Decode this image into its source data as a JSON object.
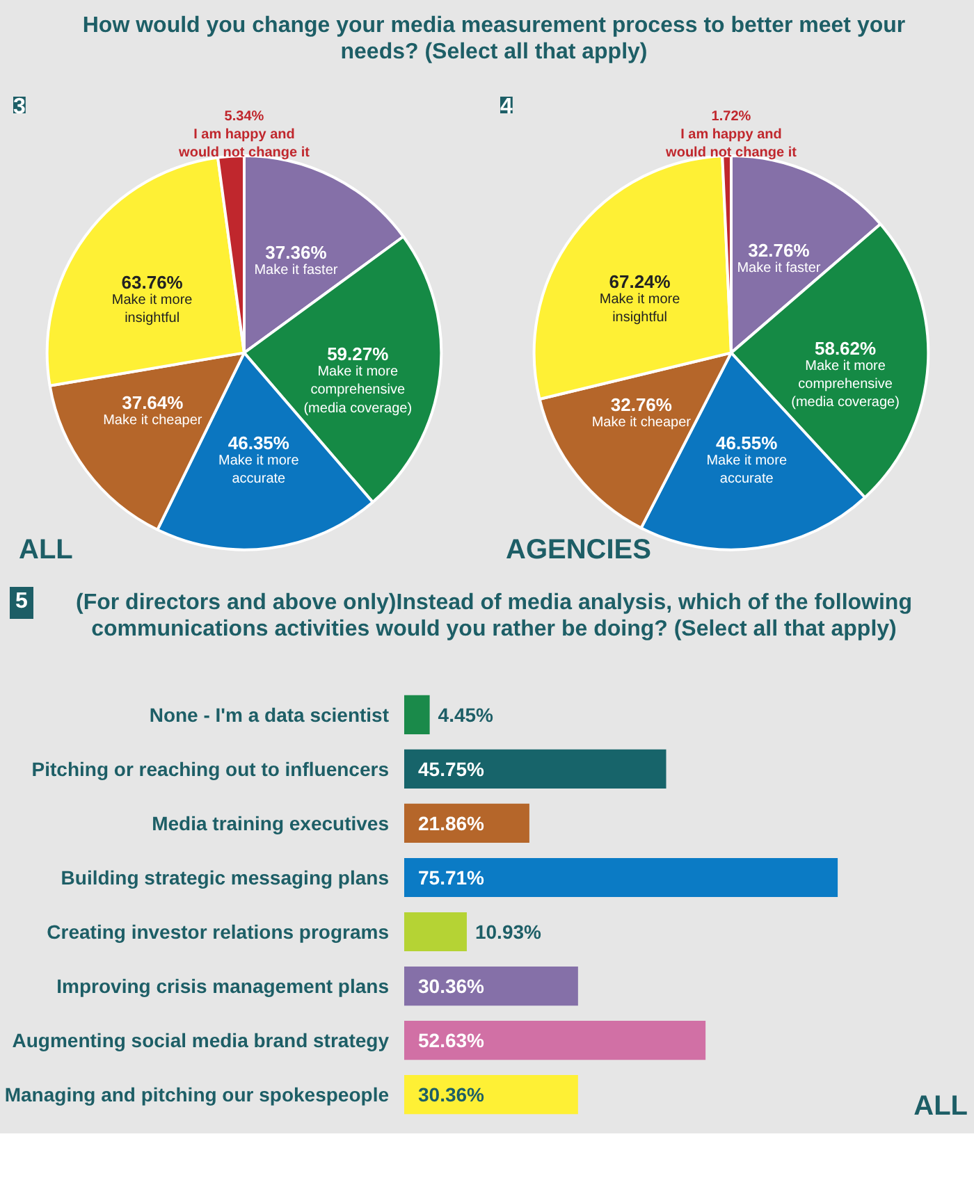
{
  "chart_data": [
    {
      "type": "pie",
      "title": "How would you change your media measurement process to better meet your needs? (Select all that apply)",
      "categories": [
        "Make it faster",
        "Make it more comprehensive (media coverage)",
        "Make it more accurate",
        "Make it cheaper",
        "Make it more insightful",
        "I am happy and would not change it"
      ],
      "values": [
        37.36,
        59.27,
        46.35,
        37.64,
        63.76,
        5.34
      ],
      "value_labels": [
        "37.36%",
        "59.27%",
        "46.35%",
        "37.64%",
        "63.76%",
        "5.34%"
      ],
      "colors": [
        "#8570a8",
        "#158a45",
        "#0b76c0",
        "#b5662a",
        "#fef035",
        "#c0272d"
      ],
      "annotations": [
        "3",
        "ALL"
      ]
    },
    {
      "type": "pie",
      "categories": [
        "Make it faster",
        "Make it more comprehensive (media coverage)",
        "Make it more accurate",
        "Make it cheaper",
        "Make it more insightful",
        "I am happy and would not change it"
      ],
      "values": [
        32.76,
        58.62,
        46.55,
        32.76,
        67.24,
        1.72
      ],
      "value_labels": [
        "32.76%",
        "58.62%",
        "46.55%",
        "32.76%",
        "67.24%",
        "1.72%"
      ],
      "colors": [
        "#8570a8",
        "#158a45",
        "#0b76c0",
        "#b5662a",
        "#fef035",
        "#c0272d"
      ],
      "annotations": [
        "4",
        "AGENCIES"
      ]
    },
    {
      "type": "bar",
      "orientation": "horizontal",
      "title": "(For directors and above only)Instead of media analysis, which of the following communications activities would you rather be doing? (Select all that apply)",
      "categories": [
        "None - I'm a data scientist",
        "Pitching or reaching out to influencers",
        "Media training executives",
        "Building strategic messaging plans",
        "Creating investor relations programs",
        "Improving crisis management plans",
        "Augmenting social media brand strategy",
        "Managing and pitching our spokespeople"
      ],
      "values": [
        4.45,
        45.75,
        21.86,
        75.71,
        10.93,
        30.36,
        52.63,
        30.36
      ],
      "value_labels": [
        "4.45%",
        "45.75%",
        "21.86%",
        "75.71%",
        "10.93%",
        "30.36%",
        "52.63%",
        "30.36%"
      ],
      "colors": [
        "#1a8a4a",
        "#17646a",
        "#b5662a",
        "#0b7bc5",
        "#b5d334",
        "#8570a8",
        "#d170a5",
        "#fef035"
      ],
      "annotations": [
        "5",
        "ALL"
      ]
    }
  ]
}
